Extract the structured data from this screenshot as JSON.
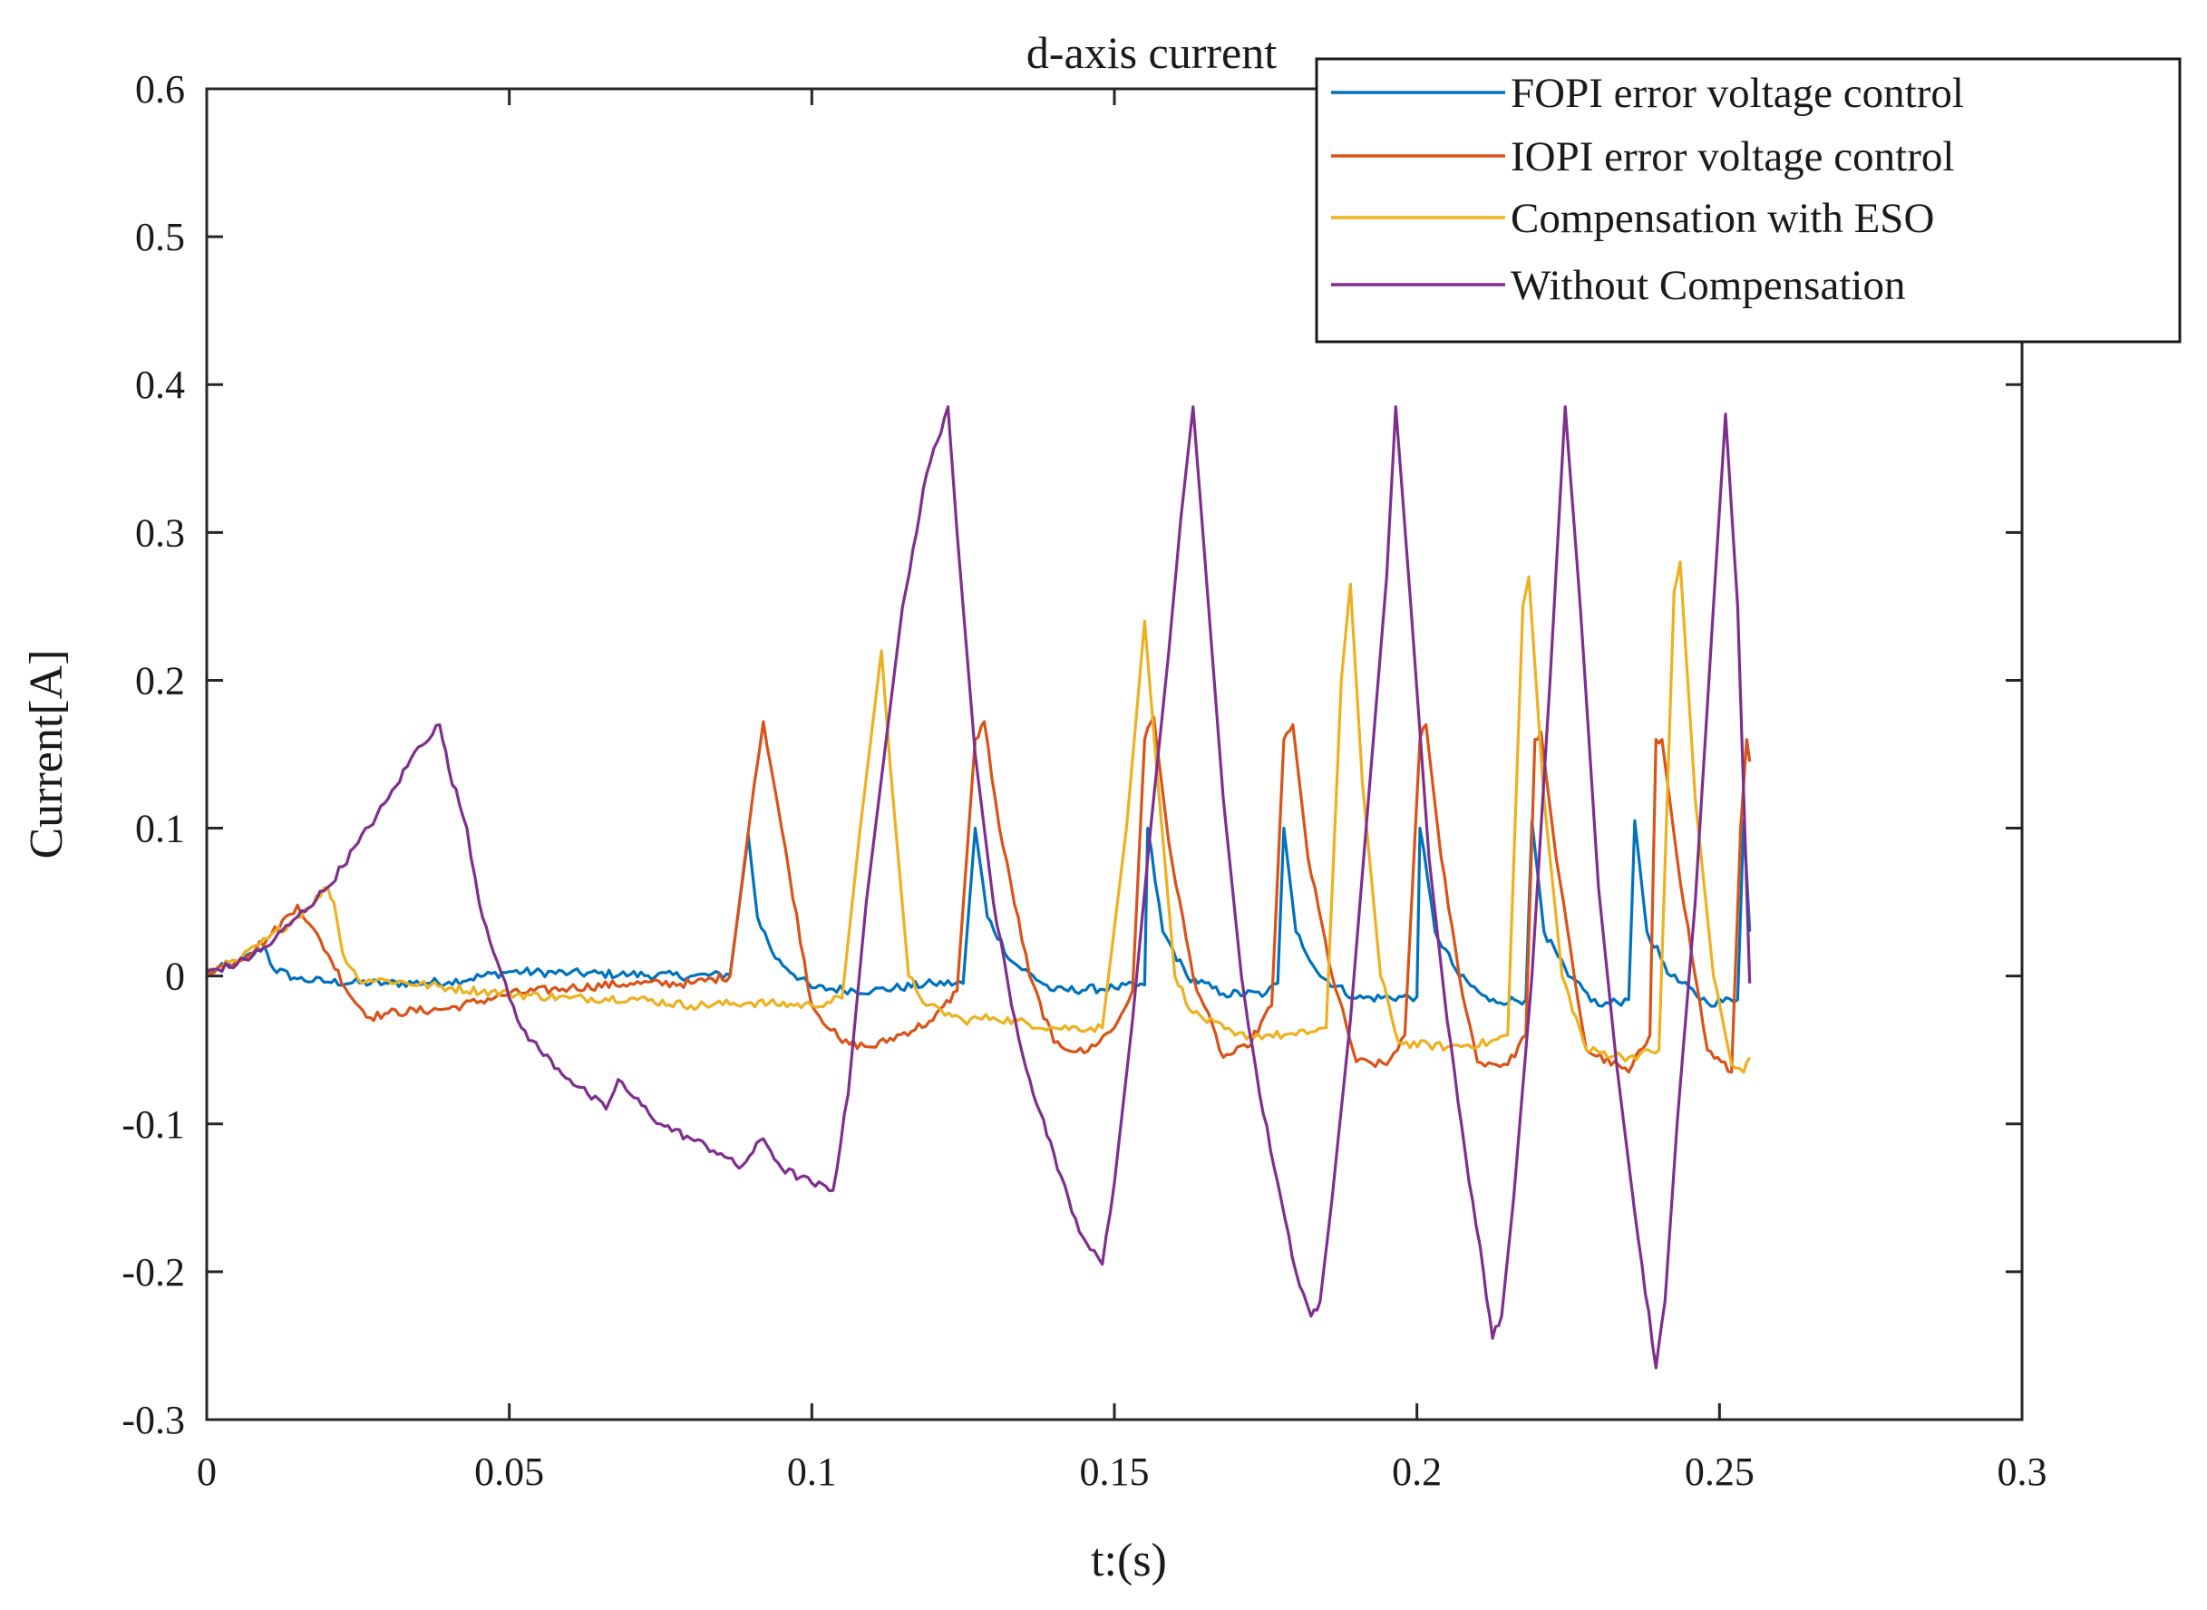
{
  "chart_data": {
    "type": "line",
    "title": "d-axis current",
    "xlabel": "t:(s)",
    "ylabel": "Current[A]",
    "xlim": [
      0,
      0.3
    ],
    "ylim": [
      -0.3,
      0.6
    ],
    "grid": false,
    "legend_position": "top-right",
    "x_ticks": [
      "0",
      "0.05",
      "0.1",
      "0.15",
      "0.2",
      "0.25",
      "0.3"
    ],
    "y_ticks": [
      "-0.3",
      "-0.2",
      "-0.1",
      "0",
      "0.1",
      "0.2",
      "0.3",
      "0.4",
      "0.5",
      "0.6"
    ],
    "series": [
      {
        "name": "FOPI error voltage control",
        "color": "#0072BD",
        "points": [
          [
            0,
            0.003
          ],
          [
            0.005,
            0.008
          ],
          [
            0.0095,
            0.02
          ],
          [
            0.011,
            0.005
          ],
          [
            0.015,
            -0.002
          ],
          [
            0.02,
            -0.004
          ],
          [
            0.03,
            -0.005
          ],
          [
            0.04,
            -0.004
          ],
          [
            0.05,
            0.003
          ],
          [
            0.06,
            0.002
          ],
          [
            0.07,
            0.001
          ],
          [
            0.08,
            0.0
          ],
          [
            0.0865,
            0.001
          ],
          [
            0.0895,
            0.095
          ],
          [
            0.091,
            0.04
          ],
          [
            0.094,
            0.012
          ],
          [
            0.1,
            -0.008
          ],
          [
            0.11,
            -0.01
          ],
          [
            0.12,
            -0.005
          ],
          [
            0.125,
            -0.005
          ],
          [
            0.127,
            0.1
          ],
          [
            0.129,
            0.04
          ],
          [
            0.133,
            0.01
          ],
          [
            0.14,
            -0.01
          ],
          [
            0.15,
            -0.008
          ],
          [
            0.155,
            -0.006
          ],
          [
            0.1555,
            0.1
          ],
          [
            0.158,
            0.03
          ],
          [
            0.162,
            0.0
          ],
          [
            0.168,
            -0.012
          ],
          [
            0.175,
            -0.012
          ],
          [
            0.177,
            -0.005
          ],
          [
            0.178,
            0.1
          ],
          [
            0.18,
            0.03
          ],
          [
            0.184,
            0.0
          ],
          [
            0.19,
            -0.015
          ],
          [
            0.2,
            -0.014
          ],
          [
            0.2005,
            0.1
          ],
          [
            0.203,
            0.03
          ],
          [
            0.207,
            0.0
          ],
          [
            0.212,
            -0.017
          ],
          [
            0.218,
            -0.016
          ],
          [
            0.219,
            0.105
          ],
          [
            0.221,
            0.03
          ],
          [
            0.225,
            0.0
          ],
          [
            0.23,
            -0.02
          ],
          [
            0.235,
            -0.016
          ],
          [
            0.236,
            0.105
          ],
          [
            0.238,
            0.03
          ],
          [
            0.242,
            0.0
          ],
          [
            0.248,
            -0.018
          ],
          [
            0.253,
            -0.016
          ],
          [
            0.254,
            0.105
          ],
          [
            0.255,
            0.03
          ]
        ]
      },
      {
        "name": "IOPI error voltage control",
        "color": "#D95319",
        "points": [
          [
            0,
            0.003
          ],
          [
            0.005,
            0.01
          ],
          [
            0.01,
            0.025
          ],
          [
            0.015,
            0.048
          ],
          [
            0.017,
            0.035
          ],
          [
            0.02,
            0.015
          ],
          [
            0.024,
            -0.015
          ],
          [
            0.027,
            -0.028
          ],
          [
            0.03,
            -0.025
          ],
          [
            0.04,
            -0.022
          ],
          [
            0.05,
            -0.012
          ],
          [
            0.06,
            -0.008
          ],
          [
            0.07,
            -0.005
          ],
          [
            0.08,
            -0.005
          ],
          [
            0.0865,
            0.0
          ],
          [
            0.0905,
            0.13
          ],
          [
            0.092,
            0.172
          ],
          [
            0.095,
            0.1
          ],
          [
            0.1,
            -0.02
          ],
          [
            0.105,
            -0.045
          ],
          [
            0.11,
            -0.048
          ],
          [
            0.12,
            -0.03
          ],
          [
            0.124,
            -0.01
          ],
          [
            0.127,
            0.16
          ],
          [
            0.1285,
            0.172
          ],
          [
            0.131,
            0.1
          ],
          [
            0.136,
            0.0
          ],
          [
            0.14,
            -0.045
          ],
          [
            0.145,
            -0.052
          ],
          [
            0.15,
            -0.035
          ],
          [
            0.153,
            -0.01
          ],
          [
            0.155,
            0.16
          ],
          [
            0.1565,
            0.175
          ],
          [
            0.159,
            0.09
          ],
          [
            0.163,
            0.0
          ],
          [
            0.168,
            -0.055
          ],
          [
            0.172,
            -0.048
          ],
          [
            0.176,
            -0.02
          ],
          [
            0.178,
            0.16
          ],
          [
            0.1795,
            0.17
          ],
          [
            0.182,
            0.08
          ],
          [
            0.186,
            0.0
          ],
          [
            0.19,
            -0.058
          ],
          [
            0.195,
            -0.06
          ],
          [
            0.198,
            -0.04
          ],
          [
            0.2005,
            0.16
          ],
          [
            0.2015,
            0.17
          ],
          [
            0.204,
            0.08
          ],
          [
            0.207,
            0.0
          ],
          [
            0.21,
            -0.058
          ],
          [
            0.215,
            -0.06
          ],
          [
            0.218,
            -0.04
          ],
          [
            0.2195,
            0.16
          ],
          [
            0.2205,
            0.165
          ],
          [
            0.223,
            0.08
          ],
          [
            0.226,
            0.0
          ],
          [
            0.228,
            -0.05
          ],
          [
            0.235,
            -0.065
          ],
          [
            0.2385,
            -0.04
          ],
          [
            0.2395,
            0.16
          ],
          [
            0.2405,
            0.16
          ],
          [
            0.243,
            0.08
          ],
          [
            0.246,
            0.0
          ],
          [
            0.248,
            -0.05
          ],
          [
            0.252,
            -0.065
          ],
          [
            0.2535,
            0.1
          ],
          [
            0.2545,
            0.16
          ],
          [
            0.255,
            0.145
          ]
        ]
      },
      {
        "name": "Compensation with ESO",
        "color": "#EDB120",
        "points": [
          [
            0,
            0.003
          ],
          [
            0.005,
            0.01
          ],
          [
            0.01,
            0.025
          ],
          [
            0.015,
            0.04
          ],
          [
            0.02,
            0.06
          ],
          [
            0.021,
            0.05
          ],
          [
            0.0225,
            0.015
          ],
          [
            0.025,
            -0.002
          ],
          [
            0.03,
            -0.003
          ],
          [
            0.04,
            -0.008
          ],
          [
            0.05,
            -0.012
          ],
          [
            0.06,
            -0.015
          ],
          [
            0.07,
            -0.015
          ],
          [
            0.08,
            -0.02
          ],
          [
            0.09,
            -0.018
          ],
          [
            0.1,
            -0.02
          ],
          [
            0.105,
            -0.015
          ],
          [
            0.108,
            0.1
          ],
          [
            0.1115,
            0.22
          ],
          [
            0.113,
            0.14
          ],
          [
            0.116,
            0.0
          ],
          [
            0.119,
            -0.02
          ],
          [
            0.125,
            -0.03
          ],
          [
            0.13,
            -0.028
          ],
          [
            0.14,
            -0.035
          ],
          [
            0.148,
            -0.035
          ],
          [
            0.152,
            0.1
          ],
          [
            0.155,
            0.24
          ],
          [
            0.157,
            0.14
          ],
          [
            0.16,
            0.0
          ],
          [
            0.163,
            -0.025
          ],
          [
            0.17,
            -0.04
          ],
          [
            0.175,
            -0.04
          ],
          [
            0.18,
            -0.04
          ],
          [
            0.185,
            -0.035
          ],
          [
            0.1875,
            0.2
          ],
          [
            0.189,
            0.265
          ],
          [
            0.191,
            0.13
          ],
          [
            0.194,
            0.0
          ],
          [
            0.197,
            -0.045
          ],
          [
            0.205,
            -0.048
          ],
          [
            0.212,
            -0.045
          ],
          [
            0.215,
            -0.04
          ],
          [
            0.2175,
            0.25
          ],
          [
            0.2185,
            0.27
          ],
          [
            0.221,
            0.12
          ],
          [
            0.224,
            0.0
          ],
          [
            0.228,
            -0.05
          ],
          [
            0.235,
            -0.055
          ],
          [
            0.24,
            -0.05
          ],
          [
            0.2425,
            0.26
          ],
          [
            0.2435,
            0.28
          ],
          [
            0.246,
            0.12
          ],
          [
            0.249,
            0.0
          ],
          [
            0.252,
            -0.06
          ],
          [
            0.254,
            -0.065
          ],
          [
            0.255,
            -0.055
          ]
        ]
      },
      {
        "name": "Without Compensation",
        "color": "#7E2F8E",
        "points": [
          [
            0,
            0.003
          ],
          [
            0.005,
            0.008
          ],
          [
            0.01,
            0.02
          ],
          [
            0.015,
            0.04
          ],
          [
            0.02,
            0.06
          ],
          [
            0.025,
            0.09
          ],
          [
            0.03,
            0.12
          ],
          [
            0.035,
            0.155
          ],
          [
            0.0385,
            0.17
          ],
          [
            0.04,
            0.14
          ],
          [
            0.043,
            0.1
          ],
          [
            0.045,
            0.05
          ],
          [
            0.048,
            0.01
          ],
          [
            0.05,
            -0.015
          ],
          [
            0.052,
            -0.035
          ],
          [
            0.055,
            -0.05
          ],
          [
            0.06,
            -0.07
          ],
          [
            0.063,
            -0.08
          ],
          [
            0.066,
            -0.09
          ],
          [
            0.068,
            -0.07
          ],
          [
            0.07,
            -0.08
          ],
          [
            0.075,
            -0.1
          ],
          [
            0.08,
            -0.11
          ],
          [
            0.085,
            -0.12
          ],
          [
            0.088,
            -0.13
          ],
          [
            0.092,
            -0.11
          ],
          [
            0.095,
            -0.13
          ],
          [
            0.1,
            -0.14
          ],
          [
            0.1035,
            -0.145
          ],
          [
            0.106,
            -0.08
          ],
          [
            0.109,
            0.05
          ],
          [
            0.112,
            0.15
          ],
          [
            0.115,
            0.25
          ],
          [
            0.119,
            0.34
          ],
          [
            0.1225,
            0.385
          ],
          [
            0.124,
            0.3
          ],
          [
            0.127,
            0.15
          ],
          [
            0.13,
            0.05
          ],
          [
            0.133,
            -0.02
          ],
          [
            0.136,
            -0.07
          ],
          [
            0.14,
            -0.12
          ],
          [
            0.143,
            -0.16
          ],
          [
            0.146,
            -0.185
          ],
          [
            0.148,
            -0.195
          ],
          [
            0.15,
            -0.14
          ],
          [
            0.153,
            -0.03
          ],
          [
            0.156,
            0.1
          ],
          [
            0.159,
            0.22
          ],
          [
            0.161,
            0.31
          ],
          [
            0.163,
            0.385
          ],
          [
            0.165,
            0.28
          ],
          [
            0.168,
            0.12
          ],
          [
            0.171,
            0.0
          ],
          [
            0.174,
            -0.08
          ],
          [
            0.177,
            -0.14
          ],
          [
            0.18,
            -0.2
          ],
          [
            0.1825,
            -0.23
          ],
          [
            0.184,
            -0.22
          ],
          [
            0.186,
            -0.15
          ],
          [
            0.189,
            -0.03
          ],
          [
            0.192,
            0.12
          ],
          [
            0.195,
            0.27
          ],
          [
            0.1965,
            0.385
          ],
          [
            0.199,
            0.25
          ],
          [
            0.202,
            0.08
          ],
          [
            0.205,
            -0.03
          ],
          [
            0.208,
            -0.12
          ],
          [
            0.211,
            -0.2
          ],
          [
            0.2125,
            -0.245
          ],
          [
            0.214,
            -0.23
          ],
          [
            0.216,
            -0.15
          ],
          [
            0.219,
            0.0
          ],
          [
            0.222,
            0.2
          ],
          [
            0.2245,
            0.385
          ],
          [
            0.227,
            0.25
          ],
          [
            0.23,
            0.06
          ],
          [
            0.233,
            -0.06
          ],
          [
            0.236,
            -0.16
          ],
          [
            0.2395,
            -0.265
          ],
          [
            0.241,
            -0.22
          ],
          [
            0.243,
            -0.1
          ],
          [
            0.246,
            0.05
          ],
          [
            0.249,
            0.25
          ],
          [
            0.251,
            0.38
          ],
          [
            0.253,
            0.25
          ],
          [
            0.255,
            -0.005
          ]
        ]
      }
    ]
  }
}
